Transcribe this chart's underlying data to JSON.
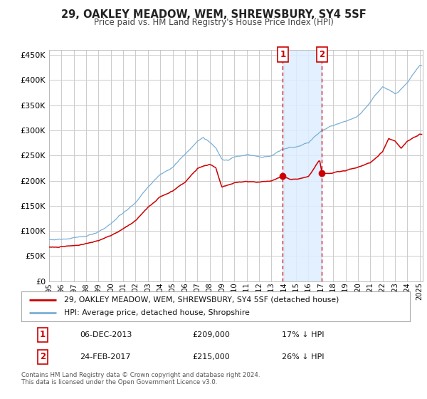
{
  "title": "29, OAKLEY MEADOW, WEM, SHREWSBURY, SY4 5SF",
  "subtitle": "Price paid vs. HM Land Registry's House Price Index (HPI)",
  "legend_line1": "29, OAKLEY MEADOW, WEM, SHREWSBURY, SY4 5SF (detached house)",
  "legend_line2": "HPI: Average price, detached house, Shropshire",
  "annotation1_date": "06-DEC-2013",
  "annotation1_price": "£209,000",
  "annotation1_hpi": "17% ↓ HPI",
  "annotation2_date": "24-FEB-2017",
  "annotation2_price": "£215,000",
  "annotation2_hpi": "26% ↓ HPI",
  "footer": "Contains HM Land Registry data © Crown copyright and database right 2024.\nThis data is licensed under the Open Government Licence v3.0.",
  "hpi_color": "#7bafd4",
  "price_color": "#cc0000",
  "shade_color": "#ddeeff",
  "annotation_box_color": "#cc0000",
  "ylim": [
    0,
    460000
  ],
  "yticks": [
    0,
    50000,
    100000,
    150000,
    200000,
    250000,
    300000,
    350000,
    400000,
    450000
  ],
  "grid_color": "#cccccc",
  "bg_color": "#ffffff"
}
